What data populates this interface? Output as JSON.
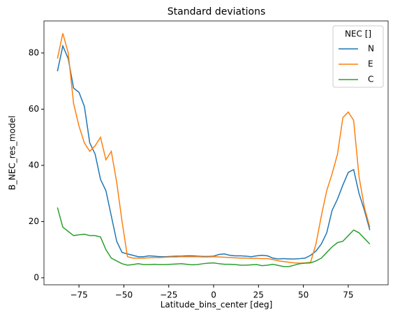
{
  "chart_data": {
    "type": "line",
    "title": "Standard deviations",
    "xlabel": "Latitude_bins_center [deg]",
    "ylabel": "B_NEC_res_model",
    "x": [
      -87,
      -84,
      -81,
      -78,
      -75,
      -72,
      -69,
      -66,
      -63,
      -60,
      -57,
      -54,
      -51,
      -48,
      -45,
      -42,
      -39,
      -36,
      -33,
      -30,
      -27,
      -24,
      -21,
      -18,
      -15,
      -12,
      -9,
      -6,
      -3,
      0,
      3,
      6,
      9,
      12,
      15,
      18,
      21,
      24,
      27,
      30,
      33,
      36,
      39,
      42,
      45,
      48,
      51,
      54,
      57,
      60,
      63,
      66,
      69,
      72,
      75,
      78,
      81,
      84,
      87
    ],
    "series": [
      {
        "name": "N",
        "color": "#1f77b4",
        "values": [
          73.5,
          82.5,
          78,
          67.5,
          66,
          61,
          48,
          44,
          35,
          31,
          22,
          13,
          9,
          8.5,
          8,
          7.5,
          7.5,
          7.8,
          7.7,
          7.5,
          7.5,
          7.6,
          7.7,
          7.7,
          7.8,
          7.8,
          7.7,
          7.6,
          7.6,
          7.7,
          8.3,
          8.5,
          8,
          7.8,
          7.8,
          7.7,
          7.5,
          7.8,
          8,
          7.8,
          7,
          6.7,
          6.8,
          6.7,
          6.7,
          6.8,
          7,
          8,
          9.5,
          12,
          16,
          24,
          28,
          33,
          37.5,
          38.5,
          30,
          24,
          17
        ]
      },
      {
        "name": "E",
        "color": "#ff7f0e",
        "values": [
          78,
          87,
          80,
          62,
          54,
          48,
          45,
          47,
          50,
          42,
          45,
          34,
          20,
          7.5,
          7,
          7,
          7,
          7.1,
          7.2,
          7.2,
          7.3,
          7.4,
          7.4,
          7.5,
          7.5,
          7.5,
          7.5,
          7.4,
          7.4,
          7.5,
          7.4,
          7.3,
          7.2,
          7.1,
          7,
          7,
          6.9,
          6.9,
          6.8,
          6.8,
          6.5,
          6,
          5.8,
          5.5,
          5.3,
          5.2,
          5.3,
          5.5,
          12,
          22,
          31,
          37,
          44,
          57,
          59,
          56,
          36,
          25,
          18
        ]
      },
      {
        "name": "C",
        "color": "#2ca02c",
        "values": [
          25,
          18,
          16.5,
          15,
          15.3,
          15.5,
          15,
          15,
          14.5,
          10,
          7,
          6,
          5,
          4.5,
          4.7,
          5,
          4.7,
          4.7,
          4.8,
          4.7,
          4.7,
          4.8,
          4.9,
          5,
          4.8,
          4.6,
          4.7,
          5,
          5.2,
          5.3,
          5,
          4.8,
          4.8,
          4.7,
          4.5,
          4.5,
          4.6,
          4.7,
          4.3,
          4.5,
          4.8,
          4.4,
          4,
          4,
          4.5,
          5,
          5.2,
          5.3,
          6,
          7,
          9,
          11,
          12.5,
          13,
          15,
          17,
          16,
          14,
          12
        ]
      }
    ],
    "xlim": [
      -94.5,
      97.2
    ],
    "ylim": [
      -2.5,
      91.4
    ],
    "xticks": [
      {
        "value": -75,
        "label": "−75"
      },
      {
        "value": -50,
        "label": "−50"
      },
      {
        "value": -25,
        "label": "−25"
      },
      0,
      25,
      50,
      75
    ],
    "yticks": [
      0,
      20,
      40,
      60,
      80
    ],
    "legend_title": "NEC []",
    "legend_position": "upper right"
  }
}
